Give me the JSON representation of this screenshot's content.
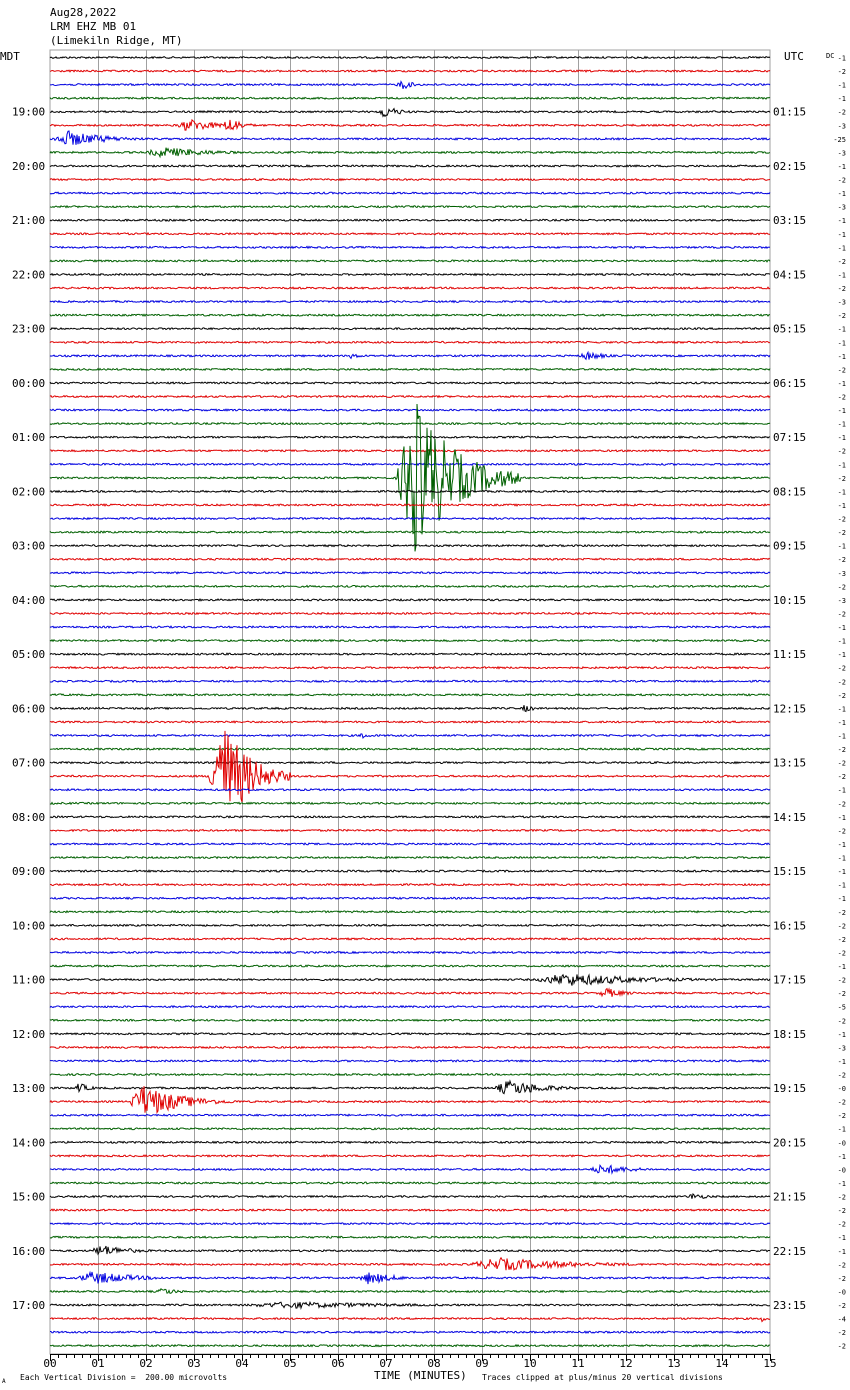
{
  "header": {
    "date": "Aug28,2022",
    "channel": "LRM EHZ MB 01",
    "site": "(Limekiln Ridge, MT)"
  },
  "left_timezone": "MDT",
  "right_timezone": "UTC",
  "dc_label": "DC",
  "footer": {
    "xlabel": "TIME (MINUTES)",
    "scale_note": "Each Vertical Division =  200.00 microvolts",
    "clip_note": "Traces clipped at plus/minus 20 vertical divisions",
    "corner_mark": "A"
  },
  "colors": {
    "trace_cycle": [
      "#000000",
      "#e00000",
      "#0000e0",
      "#006000"
    ],
    "grid": "#a0a0a0",
    "axis": "#000000"
  },
  "chart_data": {
    "type": "line",
    "title": "LRM EHZ MB 01",
    "xlabel": "TIME (MINUTES)",
    "xlim": [
      0,
      15
    ],
    "x_ticks": [
      "00",
      "01",
      "02",
      "03",
      "04",
      "05",
      "06",
      "07",
      "08",
      "09",
      "10",
      "11",
      "12",
      "13",
      "14",
      "15"
    ],
    "trace_count": 96,
    "trace_interval_minutes": 15,
    "left_hour_labels": [
      "19:00",
      "20:00",
      "21:00",
      "22:00",
      "23:00",
      "00:00",
      "01:00",
      "02:00",
      "03:00",
      "04:00",
      "05:00",
      "06:00",
      "07:00",
      "08:00",
      "09:00",
      "10:00",
      "11:00",
      "12:00",
      "13:00",
      "14:00",
      "15:00",
      "16:00",
      "17:00"
    ],
    "right_hour_labels": [
      "01:15",
      "02:15",
      "03:15",
      "04:15",
      "05:15",
      "06:15",
      "07:15",
      "08:15",
      "09:15",
      "10:15",
      "11:15",
      "12:15",
      "13:15",
      "14:15",
      "15:15",
      "16:15",
      "17:15",
      "18:15",
      "19:15",
      "20:15",
      "21:15",
      "22:15",
      "23:15"
    ],
    "dc_offsets": [
      "-1",
      "-2",
      "-1",
      "-1",
      "-2",
      "-3",
      "-25",
      "-3",
      "-1",
      "-2",
      "-1",
      "-3",
      "-1",
      "-1",
      "-1",
      "-2",
      "-1",
      "-2",
      "-3",
      "-2",
      "-1",
      "-1",
      "-1",
      "-2",
      "-1",
      "-2",
      "-1",
      "-1",
      "-1",
      "-2",
      "-1",
      "-2",
      "-1",
      "-1",
      "-2",
      "-2",
      "-1",
      "-2",
      "-3",
      "-2",
      "-3",
      "-2",
      "-1",
      "-1",
      "-1",
      "-2",
      "-2",
      "-2",
      "-1",
      "-1",
      "-1",
      "-2",
      "-2",
      "-2",
      "-1",
      "-2",
      "-1",
      "-2",
      "-1",
      "-1",
      "-1",
      "-1",
      "-1",
      "-2",
      "-2",
      "-2",
      "-2",
      "-1",
      "-2",
      "-2",
      "-5",
      "-2",
      "-1",
      "-3",
      "-1",
      "-2",
      "-0",
      "-2",
      "-2",
      "-1",
      "-0",
      "-1",
      "-0",
      "-1",
      "-2",
      "-2",
      "-2",
      "-1",
      "-1",
      "-2",
      "-2",
      "-0",
      "-2",
      "-4",
      "-2",
      "-2"
    ],
    "series": [
      {
        "trace": 2,
        "x": [
          7.2,
          8.0
        ],
        "peak_divisions": 0.8
      },
      {
        "trace": 4,
        "x": [
          6.8,
          7.8
        ],
        "peak_divisions": 1.0
      },
      {
        "trace": 5,
        "x": [
          2.6,
          4.5
        ],
        "peak_divisions": 1.0
      },
      {
        "trace": 5,
        "x": [
          3.6,
          4.4
        ],
        "peak_divisions": 1.4
      },
      {
        "trace": 6,
        "x": [
          0.0,
          2.5
        ],
        "peak_divisions": 1.2
      },
      {
        "trace": 7,
        "x": [
          1.9,
          5.0
        ],
        "peak_divisions": 0.8
      },
      {
        "trace": 22,
        "x": [
          6.2,
          6.8
        ],
        "peak_divisions": 0.5
      },
      {
        "trace": 22,
        "x": [
          11.0,
          12.2
        ],
        "peak_divisions": 0.7
      },
      {
        "trace": 31,
        "x": [
          7.2,
          9.8
        ],
        "peak_divisions": 12.0
      },
      {
        "trace": 50,
        "x": [
          6.4,
          7.0
        ],
        "peak_divisions": 0.5
      },
      {
        "trace": 48,
        "x": [
          9.8,
          10.4
        ],
        "peak_divisions": 0.6
      },
      {
        "trace": 53,
        "x": [
          3.3,
          5.0
        ],
        "peak_divisions": 9.0
      },
      {
        "trace": 68,
        "x": [
          10.0,
          15.0
        ],
        "peak_divisions": 1.0
      },
      {
        "trace": 69,
        "x": [
          11.4,
          12.6
        ],
        "peak_divisions": 0.8
      },
      {
        "trace": 76,
        "x": [
          0.5,
          1.2
        ],
        "peak_divisions": 0.8
      },
      {
        "trace": 76,
        "x": [
          9.2,
          11.6
        ],
        "peak_divisions": 1.2
      },
      {
        "trace": 77,
        "x": [
          1.6,
          4.0
        ],
        "peak_divisions": 2.5
      },
      {
        "trace": 82,
        "x": [
          11.2,
          13.2
        ],
        "peak_divisions": 0.8
      },
      {
        "trace": 84,
        "x": [
          13.2,
          14.4
        ],
        "peak_divisions": 0.5
      },
      {
        "trace": 88,
        "x": [
          0.8,
          2.6
        ],
        "peak_divisions": 0.9
      },
      {
        "trace": 89,
        "x": [
          8.6,
          13.6
        ],
        "peak_divisions": 1.0
      },
      {
        "trace": 90,
        "x": [
          0.5,
          3.2
        ],
        "peak_divisions": 1.0
      },
      {
        "trace": 90,
        "x": [
          6.4,
          8.0
        ],
        "peak_divisions": 1.0
      },
      {
        "trace": 91,
        "x": [
          2.2,
          3.2
        ],
        "peak_divisions": 0.6
      },
      {
        "trace": 92,
        "x": [
          3.8,
          11.6
        ],
        "peak_divisions": 0.5
      },
      {
        "trace": 93,
        "x": [
          14.8,
          15.0
        ],
        "peak_divisions": 0.8
      }
    ]
  }
}
